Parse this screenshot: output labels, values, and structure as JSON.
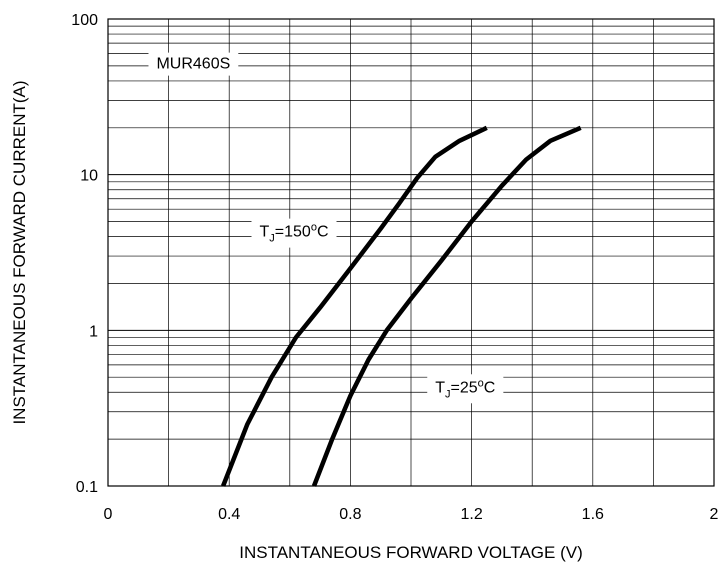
{
  "chart_data": {
    "type": "line",
    "xlabel": "INSTANTANEOUS FORWARD VOLTAGE (V)",
    "ylabel": "INSTANTANEOUS FORWARD CURRENT(A)",
    "xlim": [
      0,
      2
    ],
    "ylim": [
      0.1,
      100
    ],
    "yscale": "log",
    "grid": true,
    "x_ticks": [
      0,
      0.4,
      0.8,
      1.2,
      1.6,
      2
    ],
    "x_tick_labels": [
      "0",
      "0.4",
      "0.8",
      "1.2",
      "1.6",
      "2"
    ],
    "y_ticks": [
      0.1,
      1,
      10,
      100
    ],
    "y_tick_labels": [
      "0.1",
      "1",
      "10",
      "100"
    ],
    "series": [
      {
        "x": [
          0.38,
          0.46,
          0.54,
          0.62,
          0.7,
          0.8,
          0.9,
          0.96,
          1.02,
          1.08,
          1.16,
          1.25
        ],
        "y": [
          0.1,
          0.25,
          0.5,
          0.9,
          1.4,
          2.5,
          4.5,
          6.5,
          9.5,
          13,
          16.5,
          20
        ]
      },
      {
        "x": [
          0.68,
          0.74,
          0.8,
          0.86,
          0.92,
          1.0,
          1.1,
          1.2,
          1.3,
          1.38,
          1.46,
          1.56
        ],
        "y": [
          0.1,
          0.2,
          0.38,
          0.65,
          1.0,
          1.6,
          2.8,
          5.0,
          8.5,
          12.5,
          16.5,
          20
        ]
      }
    ],
    "annotations": [
      {
        "kind": "plain",
        "text": "MUR460S",
        "x": 0.16,
        "y": 48
      },
      {
        "kind": "tj",
        "main": "T",
        "sub": "J",
        "value": "=150",
        "sup": "o",
        "unit": "C",
        "x": 0.5,
        "y": 4.0
      },
      {
        "kind": "tj",
        "main": "T",
        "sub": "J",
        "value": "=25",
        "sup": "o",
        "unit": "C",
        "x": 1.08,
        "y": 0.4
      }
    ]
  }
}
